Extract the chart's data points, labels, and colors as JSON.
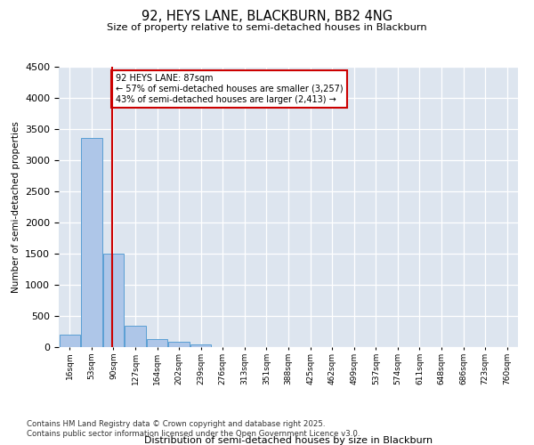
{
  "title_line1": "92, HEYS LANE, BLACKBURN, BB2 4NG",
  "title_line2": "Size of property relative to semi-detached houses in Blackburn",
  "xlabel": "Distribution of semi-detached houses by size in Blackburn",
  "ylabel": "Number of semi-detached properties",
  "bins": [
    "16sqm",
    "53sqm",
    "90sqm",
    "127sqm",
    "164sqm",
    "202sqm",
    "239sqm",
    "276sqm",
    "313sqm",
    "351sqm",
    "388sqm",
    "425sqm",
    "462sqm",
    "499sqm",
    "537sqm",
    "574sqm",
    "611sqm",
    "648sqm",
    "686sqm",
    "723sqm",
    "760sqm"
  ],
  "bar_heights": [
    200,
    3350,
    1500,
    350,
    130,
    80,
    45,
    5,
    0,
    0,
    5,
    0,
    0,
    0,
    0,
    0,
    0,
    0,
    0,
    0,
    0
  ],
  "bar_color": "#aec6e8",
  "bar_edge_color": "#5a9fd4",
  "vline_pos": 1.95,
  "vline_color": "#cc0000",
  "annotation_title": "92 HEYS LANE: 87sqm",
  "annotation_line1": "← 57% of semi-detached houses are smaller (3,257)",
  "annotation_line2": "43% of semi-detached houses are larger (2,413) →",
  "annotation_box_edgecolor": "#cc0000",
  "ylim": [
    0,
    4500
  ],
  "yticks": [
    0,
    500,
    1000,
    1500,
    2000,
    2500,
    3000,
    3500,
    4000,
    4500
  ],
  "background_color": "#dde5ef",
  "grid_color": "#ffffff",
  "footnote_line1": "Contains HM Land Registry data © Crown copyright and database right 2025.",
  "footnote_line2": "Contains public sector information licensed under the Open Government Licence v3.0."
}
